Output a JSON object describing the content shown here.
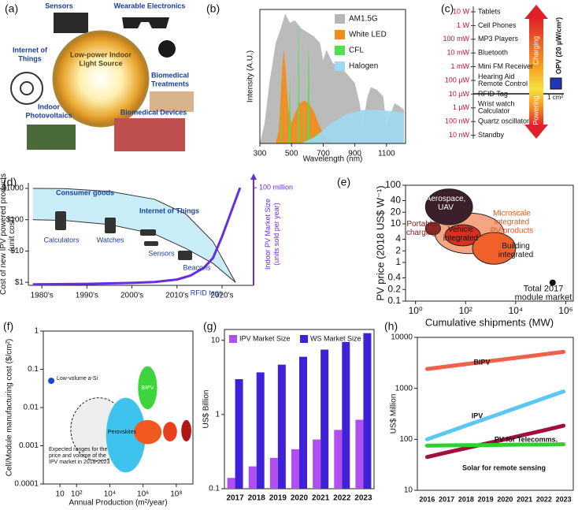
{
  "chart_data": [
    {
      "type": "diagram",
      "label": "(a)",
      "center": [
        "Low-power Indoor",
        "Light Source"
      ],
      "items": [
        [
          "Sensors"
        ],
        [
          "Wearable Electronics"
        ],
        [
          "Internet of",
          "Things"
        ],
        [
          "Biomedical",
          "Treatments"
        ],
        [
          "Indoor",
          "Photovoltaics"
        ],
        [
          "Biomedical Devices"
        ]
      ]
    },
    {
      "type": "area",
      "label": "(b)",
      "x_label": "Wavelength (nm)",
      "y_label": "Intensity (A.U.)",
      "xlim": [
        300,
        1220
      ],
      "xticks": [
        300,
        500,
        700,
        900,
        1100
      ],
      "ylim": [
        0,
        1
      ],
      "legend": "upper right",
      "series": [
        {
          "name": "AM1.5G",
          "color": "#b5b5b5",
          "x": [
            300,
            330,
            360,
            400,
            430,
            460,
            490,
            520,
            560,
            600,
            640,
            680,
            700,
            720,
            760,
            800,
            850,
            900,
            930,
            950,
            980,
            1000,
            1040,
            1080,
            1100,
            1120,
            1150,
            1180,
            1210,
            1210
          ],
          "values": [
            0,
            0.15,
            0.45,
            0.75,
            0.85,
            0.97,
            0.9,
            0.92,
            0.86,
            0.83,
            0.8,
            0.75,
            0.62,
            0.7,
            0.6,
            0.58,
            0.52,
            0.45,
            0.3,
            0.15,
            0.35,
            0.42,
            0.4,
            0.35,
            0.12,
            0.2,
            0.3,
            0.28,
            0.25,
            0
          ]
        },
        {
          "name": "White LED",
          "color": "#f28c1a",
          "x": [
            400,
            420,
            440,
            450,
            460,
            480,
            500,
            520,
            550,
            580,
            610,
            640,
            680,
            720,
            760
          ],
          "values": [
            0,
            0.1,
            0.55,
            0.7,
            0.6,
            0.25,
            0.15,
            0.22,
            0.3,
            0.32,
            0.3,
            0.24,
            0.12,
            0.04,
            0
          ]
        },
        {
          "name": "CFL",
          "color": "#4fe04f",
          "x": [
            400,
            430,
            433,
            437,
            480,
            485,
            490,
            495,
            540,
            543,
            546,
            550,
            575,
            578,
            582,
            600,
            607,
            611,
            615,
            660,
            680
          ],
          "values": [
            0,
            0,
            0.35,
            0,
            0,
            0.3,
            0.5,
            0,
            0,
            0.9,
            0.75,
            0,
            0,
            0.3,
            0,
            0,
            0.75,
            0.6,
            0,
            0.08,
            0
          ]
        },
        {
          "name": "Halogen",
          "color": "#9fd8f0",
          "x": [
            560,
            650,
            750,
            850,
            950,
            1050,
            1150,
            1210,
            1210
          ],
          "values": [
            0,
            0.05,
            0.15,
            0.22,
            0.25,
            0.25,
            0.24,
            0.23,
            0
          ]
        }
      ]
    },
    {
      "type": "scale",
      "label": "(c)",
      "charging": "Charging",
      "powering": "Powering",
      "opv": "OPV (20 µW/cm²)",
      "area": "1 cm²",
      "rows": [
        {
          "power": "10 W",
          "device": [
            "Tablets"
          ]
        },
        {
          "power": "1 W",
          "device": [
            "Cell Phones"
          ]
        },
        {
          "power": "100 mW",
          "device": [
            "MP3 Players"
          ]
        },
        {
          "power": "10 mW",
          "device": [
            "Bluetooth"
          ]
        },
        {
          "power": "1 mW",
          "device": [
            "Mini FM Receiver"
          ]
        },
        {
          "power": "100 µW",
          "device": [
            "Hearing Aid",
            "Remote Control"
          ]
        },
        {
          "power": "10 µW",
          "device": [
            "RFID Tag"
          ]
        },
        {
          "power": "1 µW",
          "device": [
            "Wrist watch",
            "Calculator"
          ]
        },
        {
          "power": "100 nW",
          "device": [
            "Quartz oscillator"
          ]
        },
        {
          "power": "10 nW",
          "device": [
            "Standby"
          ]
        }
      ]
    },
    {
      "type": "curves",
      "label": "(d)",
      "y_label": [
        "Cost of new IPV powered products",
        "(unit cost)"
      ],
      "y2_label": [
        "Indoor PV Market Size",
        "(units sold per year)"
      ],
      "xlim": [
        1977,
        2027
      ],
      "xticks": [
        {
          "value": 1980,
          "label": "1980's"
        },
        {
          "value": 1990,
          "label": "1990's"
        },
        {
          "value": 2000,
          "label": "2000's"
        },
        {
          "value": 2010,
          "label": "2010's"
        },
        {
          "value": 2020,
          "label": "2020's"
        }
      ],
      "log_y": true,
      "ylim": [
        0.8,
        1500
      ],
      "yticks": [
        {
          "value": 1,
          "label": "$1"
        },
        {
          "value": 10,
          "label": "$10"
        },
        {
          "value": 100,
          "label": "$100"
        },
        {
          "value": 1000,
          "label": "$1000"
        }
      ],
      "y2lim": [
        0,
        105
      ],
      "y2ticks": [
        {
          "value": 100,
          "label": "100 million"
        }
      ],
      "band": {
        "color": "#c9eef7",
        "x": [
          1978,
          1985,
          1995,
          2005,
          2012,
          2018,
          2023
        ],
        "upper": [
          1000,
          980,
          800,
          450,
          150,
          20,
          1
        ],
        "lower": [
          100,
          95,
          70,
          35,
          12,
          4,
          1
        ]
      },
      "series": [
        {
          "color": "#6a2ce0",
          "axis": "y2",
          "x": [
            1978,
            1990,
            2000,
            2005,
            2010,
            2013,
            2016,
            2018,
            2020,
            2022,
            2024
          ],
          "values": [
            1,
            1.5,
            2.5,
            3.5,
            6,
            10,
            18,
            28,
            50,
            75,
            100
          ]
        }
      ],
      "annotations": [
        "Consumer goods",
        "Internet of Things",
        "Calculators",
        "Watches",
        "Sensors",
        "Beacons",
        "RFID tags"
      ]
    },
    {
      "type": "regions",
      "label": "(e)",
      "x_label": "Cumulative shipments (MW)",
      "y_label": "PV price (2018 US$ W⁻¹)",
      "log_x": true,
      "log_y": true,
      "xlim": [
        0.4,
        2000000
      ],
      "ylim": [
        0.1,
        100
      ],
      "xticks": [
        {
          "value": 1,
          "label": "10⁰"
        },
        {
          "value": 100,
          "label": "10²"
        },
        {
          "value": 10000,
          "label": "10⁴"
        },
        {
          "value": 1000000,
          "label": "10⁶"
        }
      ],
      "yticks": [
        0.1,
        0.2,
        0.4,
        1,
        2,
        4,
        10,
        20,
        40,
        100
      ],
      "regions": [
        {
          "label": [
            "Microscale",
            "integrated",
            "PV products"
          ],
          "color": "#f4a582",
          "x": [
            6,
            3400
          ],
          "y": [
            1.7,
            19
          ]
        },
        {
          "label": [
            "Aerospace,",
            "UAV"
          ],
          "color": "#3b1f2b",
          "x": [
            2.5,
            190
          ],
          "y": [
            9.5,
            80
          ]
        },
        {
          "label": [
            "Vehicle",
            "integrated"
          ],
          "color": "#d7301f",
          "x": [
            15,
            390
          ],
          "y": [
            2.7,
            9.5
          ]
        },
        {
          "label": [
            "Building",
            "integrated"
          ],
          "color": "#f0602a",
          "x": [
            190,
            10000
          ],
          "y": [
            0.9,
            6
          ]
        },
        {
          "label": [
            "Portable",
            "charging"
          ],
          "color": "#8b2a2a",
          "x": [
            2.5,
            10
          ],
          "y": [
            5.2,
            11
          ]
        }
      ],
      "points": [
        {
          "label": [
            "Total 2017",
            "module market"
          ],
          "color": "#111111",
          "x": 300000,
          "y": 0.3
        }
      ]
    },
    {
      "type": "regions",
      "label": "(f)",
      "x_label": "Annual Production (m²/year)",
      "y_label": "Cell/Module manufacturing cost ($/cm²)",
      "log_x": true,
      "log_y": true,
      "xlim": [
        1,
        1000000000
      ],
      "ylim": [
        0.0001,
        1
      ],
      "xticks": [
        10,
        {
          "value": 100,
          "label": "10²"
        },
        {
          "value": 10000,
          "label": "10⁴"
        },
        {
          "value": 1000000,
          "label": "10⁶"
        },
        {
          "value": 100000000,
          "label": "10⁸"
        }
      ],
      "yticks": [
        0.0001,
        0.001,
        0.01,
        0.1,
        1
      ],
      "regions": [
        {
          "label": [
            "Expected ranges for the",
            "price and volume of the",
            "IPV market in 2018-2023"
          ],
          "color": "#eeeeee",
          "dashed": true,
          "x": [
            45,
            100000
          ],
          "y": [
            0.0004,
            0.018
          ]
        },
        {
          "color": "#3ec3ee",
          "x": [
            6000,
            1400000
          ],
          "y": [
            0.0002,
            0.018
          ]
        },
        {
          "label": [
            "BIPV"
          ],
          "color": "#3ed43e",
          "x": [
            500000,
            7000000
          ],
          "y": [
            0.009,
            0.12
          ]
        },
        {
          "label": [
            "Perovskites"
          ],
          "color": "#f05a1e",
          "x": [
            280000,
            13000000
          ],
          "y": [
            0.0011,
            0.0047
          ]
        },
        {
          "color": "#e8401c",
          "x": [
            16000000,
            110000000
          ],
          "y": [
            0.0013,
            0.0042
          ]
        },
        {
          "color": "#b01818",
          "x": [
            200000000,
            800000000
          ],
          "y": [
            0.0013,
            0.0047
          ]
        }
      ],
      "points": [
        {
          "label": [
            "Low-volume a-Si"
          ],
          "color": "#2040d0",
          "x": 3,
          "y": 0.05
        }
      ]
    },
    {
      "type": "bar",
      "label": "(g)",
      "y_label": "US$ Billion",
      "log_y": true,
      "ylim": [
        0.1,
        14
      ],
      "yticks": [
        0.1,
        1,
        10
      ],
      "categories": [
        "2017",
        "2018",
        "2019",
        "2020",
        "2021",
        "2022",
        "2023"
      ],
      "legend": "upper left",
      "series": [
        {
          "name": "IPV Market Size",
          "color": "#b04ef0",
          "values": [
            0.14,
            0.2,
            0.26,
            0.34,
            0.46,
            0.62,
            0.85
          ]
        },
        {
          "name": "WS Market Size",
          "color": "#3f22d8",
          "values": [
            3.0,
            3.7,
            4.7,
            6.0,
            7.5,
            9.5,
            12.5
          ]
        }
      ]
    },
    {
      "type": "line",
      "label": "(h)",
      "y_label": "US$ Million",
      "log_y": true,
      "ylim": [
        10,
        10000
      ],
      "yticks": [
        10,
        100,
        1000,
        10000
      ],
      "categories": [
        "2016",
        "2017",
        "2018",
        "2019",
        "2020",
        "2021",
        "2022",
        "2023"
      ],
      "series": [
        {
          "name": "BIPV",
          "color": "#f0604a",
          "values": [
            2400,
            2680,
            2990,
            3340,
            3730,
            4160,
            4650,
            5200
          ]
        },
        {
          "name": "IPV",
          "color": "#5ac8f0",
          "values": [
            100,
            136,
            186,
            253,
            345,
            470,
            640,
            870
          ]
        },
        {
          "name": "PV for Telecomms.",
          "color": "#a0103a",
          "values": [
            45,
            55,
            67,
            82,
            100,
            123,
            150,
            185
          ]
        },
        {
          "name": "Solar for remote sensing",
          "color": "#30d030",
          "values": [
            75,
            76,
            77,
            77,
            78,
            79,
            79,
            80
          ]
        }
      ]
    }
  ]
}
